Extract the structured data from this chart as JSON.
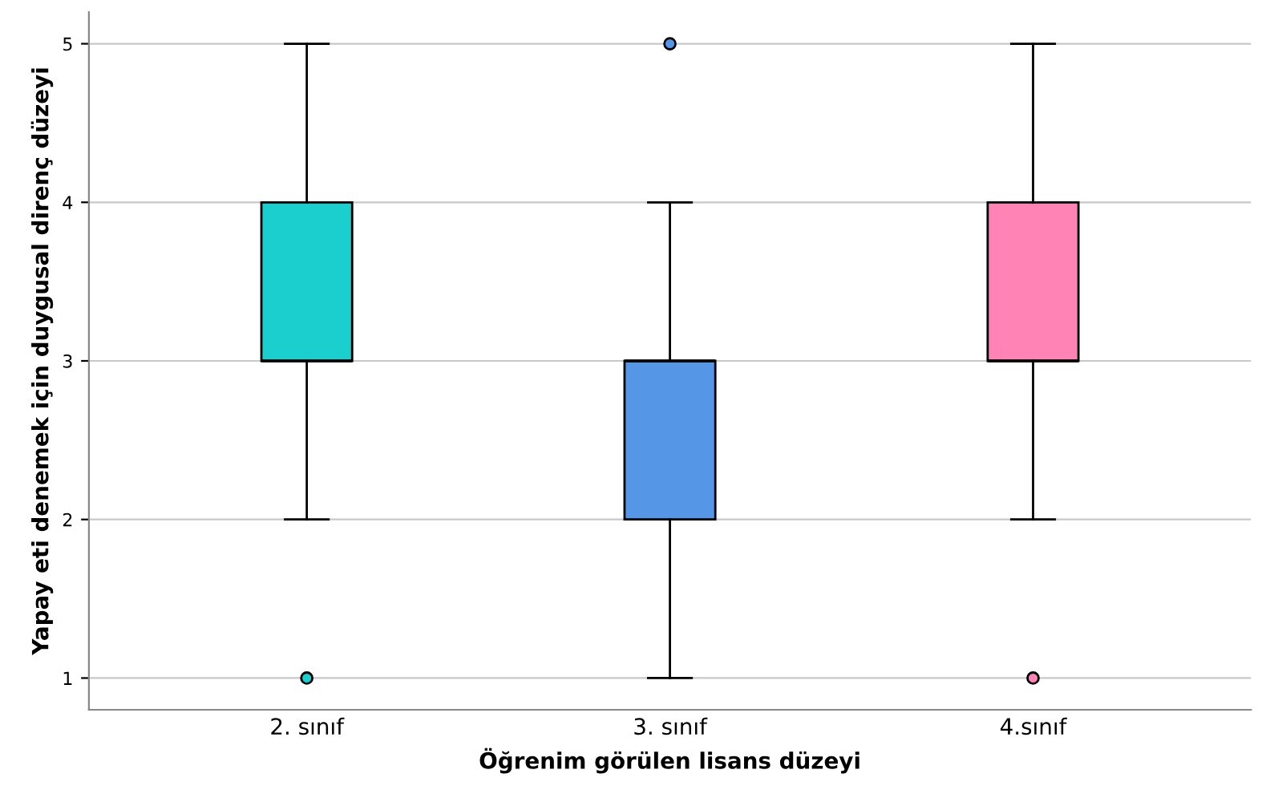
{
  "chart_data": {
    "type": "box",
    "xlabel": "Öğrenim görülen lisans düzeyi",
    "ylabel": "Yapay eti denemek için duygusal direnç düzeyi",
    "categories": [
      "2. sınıf",
      "3. sınıf",
      "4.sınıf"
    ],
    "colors": [
      "#1ccfcf",
      "#5596e6",
      "#ff83b4"
    ],
    "boxes": [
      {
        "low": 2,
        "q1": 3,
        "median": 3,
        "q3": 4,
        "high": 5,
        "outliers": [
          1
        ]
      },
      {
        "low": 1,
        "q1": 2,
        "median": 3,
        "q3": 3,
        "high": 4,
        "outliers": [
          5
        ]
      },
      {
        "low": 2,
        "q1": 3,
        "median": 3,
        "q3": 4,
        "high": 5,
        "outliers": [
          1
        ]
      }
    ],
    "ylim": [
      0.8,
      5.2
    ],
    "yticks": [
      1,
      2,
      3,
      4,
      5
    ],
    "grid": "y"
  }
}
